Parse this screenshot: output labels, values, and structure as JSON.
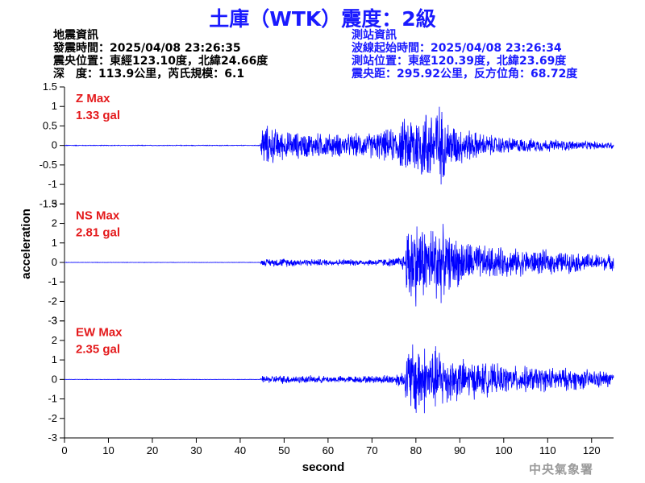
{
  "title": "土庫（WTK）震度：2級",
  "earthquake_info": {
    "heading": "地震資訊",
    "origin_time": "發震時間：2025/04/08 23:26:35",
    "epicenter": "震央位置：東經123.10度，北緯24.66度",
    "depth_magnitude": "深　度：113.9公里，芮氏規模：6.1"
  },
  "station_info": {
    "heading": "測站資訊",
    "arrival_time": "波線起始時間：2025/04/08 23:26:34",
    "location": "測站位置：東經120.39度，北緯23.69度",
    "distance_azimuth": "震央距：295.92公里，反方位角：68.72度"
  },
  "agency": "中央氣象署",
  "colors": {
    "title": "#1a1aff",
    "station_info": "#1a1aff",
    "trace": "#0000ff",
    "max_label": "#e41a1c"
  },
  "chart_data": {
    "type": "line",
    "xlabel": "second",
    "ylabel": "acceleration",
    "xlim": [
      0,
      125
    ],
    "x_ticks": [
      0,
      10,
      20,
      30,
      40,
      50,
      60,
      70,
      80,
      90,
      100,
      110,
      120
    ],
    "grid": false,
    "panels": [
      {
        "name": "Z",
        "max_label": "Z Max",
        "max_value_text": "1.33 gal",
        "max_value": 1.33,
        "unit": "gal",
        "ylim": [
          -1.5,
          1.5
        ],
        "y_ticks": [
          -1.5,
          -1,
          -0.5,
          0,
          0.5,
          1,
          1.5
        ],
        "y_tick_labels": [
          "-1.5",
          "-1",
          "-0.5",
          "0",
          "0.5",
          "1",
          "1.5"
        ],
        "envelope": {
          "x": [
            0,
            44.5,
            45,
            47,
            50,
            55,
            60,
            65,
            70,
            75,
            78,
            80,
            83,
            85,
            87,
            90,
            95,
            100,
            105,
            110,
            115,
            120,
            125
          ],
          "amplitude": [
            0.01,
            0.01,
            0.6,
            0.55,
            0.4,
            0.38,
            0.35,
            0.33,
            0.38,
            0.5,
            0.85,
            1.0,
            1.1,
            1.33,
            0.75,
            0.55,
            0.35,
            0.25,
            0.2,
            0.18,
            0.15,
            0.12,
            0.1
          ]
        }
      },
      {
        "name": "NS",
        "max_label": "NS Max",
        "max_value_text": "2.81 gal",
        "max_value": 2.81,
        "unit": "gal",
        "ylim": [
          -3,
          3
        ],
        "y_ticks": [
          -3,
          -2,
          -1,
          0,
          1,
          2,
          3
        ],
        "y_tick_labels": [
          "-3",
          "-2",
          "-1",
          "0",
          "1",
          "2",
          "3"
        ],
        "envelope": {
          "x": [
            0,
            44.5,
            45,
            50,
            55,
            60,
            65,
            70,
            75,
            77.5,
            78,
            79,
            80,
            83,
            85,
            87,
            90,
            95,
            100,
            105,
            110,
            115,
            120,
            125
          ],
          "amplitude": [
            0.01,
            0.01,
            0.2,
            0.25,
            0.2,
            0.2,
            0.18,
            0.2,
            0.25,
            0.5,
            2.3,
            2.81,
            2.5,
            2.0,
            2.6,
            1.6,
            1.4,
            1.0,
            0.85,
            0.75,
            0.7,
            0.6,
            0.5,
            0.45
          ]
        }
      },
      {
        "name": "EW",
        "max_label": "EW Max",
        "max_value_text": "2.35 gal",
        "max_value": 2.35,
        "unit": "gal",
        "ylim": [
          -3,
          3
        ],
        "y_ticks": [
          -3,
          -2,
          -1,
          0,
          1,
          2,
          3
        ],
        "y_tick_labels": [
          "-3",
          "-2",
          "-1",
          "0",
          "1",
          "2",
          "3"
        ],
        "envelope": {
          "x": [
            0,
            44.5,
            45,
            50,
            55,
            60,
            65,
            70,
            75,
            77.5,
            78,
            79,
            80,
            83,
            85,
            87,
            90,
            95,
            100,
            105,
            110,
            115,
            120,
            125
          ],
          "amplitude": [
            0.01,
            0.01,
            0.2,
            0.25,
            0.22,
            0.2,
            0.2,
            0.22,
            0.3,
            0.6,
            1.8,
            2.2,
            2.35,
            1.8,
            1.9,
            1.5,
            1.2,
            1.0,
            0.8,
            0.75,
            0.7,
            0.65,
            0.55,
            0.45
          ]
        }
      }
    ]
  }
}
